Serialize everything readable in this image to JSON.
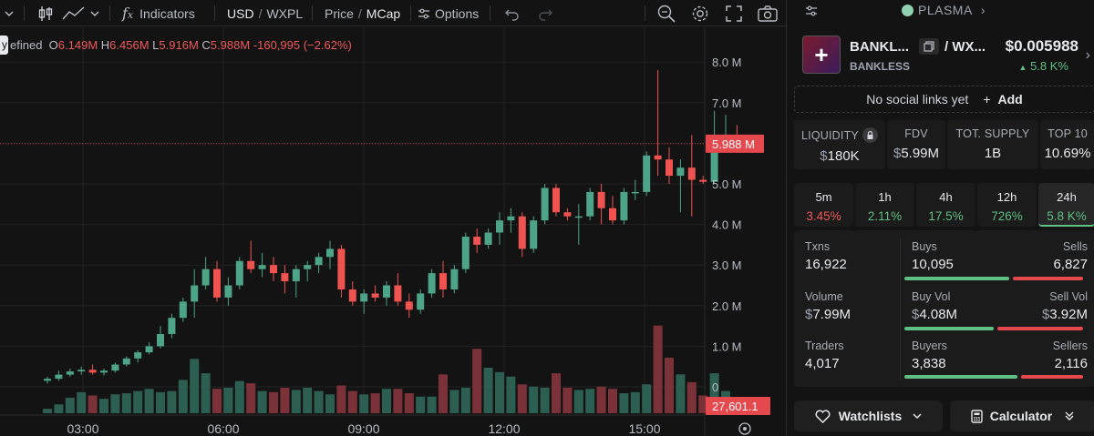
{
  "toolbar": {
    "indicators_label": "Indicators",
    "currency_usd": "USD",
    "currency_sep": "/",
    "currency_pair": "WXPL",
    "price_label": "Price",
    "price_sep": "/",
    "mcap_label": "MCap",
    "options_label": "Options"
  },
  "ohlc": {
    "prefix": "efined",
    "o_key": "O",
    "o_val": "6.149M",
    "h_key": "H",
    "h_val": "6.456M",
    "l_key": "L",
    "l_val": "5.916M",
    "c_key": "C",
    "c_val": "5.988M",
    "change": "-160,995 (−2.62%)",
    "left_tag": "y"
  },
  "price_axis": {
    "labels": [
      "8.0 M",
      "7.0 M",
      "6.0 M",
      "5.0 M",
      "4.0 M",
      "3.0 M",
      "2.0 M",
      "1.0 M",
      "0"
    ],
    "current_price": "5.988 M",
    "current_volume": "27,601.1"
  },
  "time_axis": {
    "labels": [
      "03:00",
      "06:00",
      "09:00",
      "12:00",
      "15:00"
    ]
  },
  "colors": {
    "up": "#4ea488",
    "down": "#ef5350",
    "vol_up": "#2d5e52",
    "vol_down": "#7a3238",
    "current_tag": "#e5484d"
  },
  "chart_data": {
    "type": "candlestick",
    "ylim": [
      0,
      8.5
    ],
    "y_unit": "M",
    "x_ticks": [
      "03:00",
      "06:00",
      "09:00",
      "12:00",
      "15:00"
    ],
    "candles": [
      {
        "o": 0.15,
        "h": 0.25,
        "l": 0.08,
        "c": 0.2,
        "v": 0.4
      },
      {
        "o": 0.2,
        "h": 0.4,
        "l": 0.15,
        "c": 0.3,
        "v": 0.8
      },
      {
        "o": 0.3,
        "h": 0.45,
        "l": 0.25,
        "c": 0.38,
        "v": 1.4
      },
      {
        "o": 0.38,
        "h": 0.5,
        "l": 0.3,
        "c": 0.42,
        "v": 1.9
      },
      {
        "o": 0.42,
        "h": 0.55,
        "l": 0.3,
        "c": 0.35,
        "v": 1.6
      },
      {
        "o": 0.35,
        "h": 0.45,
        "l": 0.28,
        "c": 0.4,
        "v": 1.3
      },
      {
        "o": 0.4,
        "h": 0.6,
        "l": 0.35,
        "c": 0.55,
        "v": 1.7
      },
      {
        "o": 0.55,
        "h": 0.75,
        "l": 0.5,
        "c": 0.7,
        "v": 1.8
      },
      {
        "o": 0.7,
        "h": 0.9,
        "l": 0.6,
        "c": 0.85,
        "v": 2.0
      },
      {
        "o": 0.85,
        "h": 1.1,
        "l": 0.8,
        "c": 1.0,
        "v": 2.2
      },
      {
        "o": 1.0,
        "h": 1.5,
        "l": 0.95,
        "c": 1.3,
        "v": 1.9
      },
      {
        "o": 1.3,
        "h": 1.8,
        "l": 1.2,
        "c": 1.7,
        "v": 2.0
      },
      {
        "o": 1.7,
        "h": 2.2,
        "l": 1.6,
        "c": 2.1,
        "v": 3.0
      },
      {
        "o": 2.1,
        "h": 2.9,
        "l": 1.7,
        "c": 2.5,
        "v": 4.9
      },
      {
        "o": 2.5,
        "h": 3.2,
        "l": 2.4,
        "c": 2.9,
        "v": 3.6
      },
      {
        "o": 2.9,
        "h": 3.1,
        "l": 2.1,
        "c": 2.2,
        "v": 2.2
      },
      {
        "o": 2.2,
        "h": 2.7,
        "l": 2.0,
        "c": 2.5,
        "v": 2.3
      },
      {
        "o": 2.5,
        "h": 3.2,
        "l": 2.4,
        "c": 3.1,
        "v": 2.9
      },
      {
        "o": 3.1,
        "h": 3.6,
        "l": 2.8,
        "c": 2.9,
        "v": 2.7
      },
      {
        "o": 2.9,
        "h": 3.3,
        "l": 2.7,
        "c": 3.0,
        "v": 2.0
      },
      {
        "o": 3.0,
        "h": 3.2,
        "l": 2.6,
        "c": 2.8,
        "v": 1.9
      },
      {
        "o": 2.8,
        "h": 3.0,
        "l": 2.3,
        "c": 2.6,
        "v": 2.3
      },
      {
        "o": 2.6,
        "h": 3.0,
        "l": 2.2,
        "c": 2.9,
        "v": 2.1
      },
      {
        "o": 2.9,
        "h": 3.1,
        "l": 2.6,
        "c": 3.0,
        "v": 2.3
      },
      {
        "o": 3.0,
        "h": 3.3,
        "l": 2.8,
        "c": 3.2,
        "v": 2.0
      },
      {
        "o": 3.2,
        "h": 3.6,
        "l": 2.9,
        "c": 3.4,
        "v": 1.7
      },
      {
        "o": 3.4,
        "h": 3.5,
        "l": 2.2,
        "c": 2.4,
        "v": 2.5
      },
      {
        "o": 2.4,
        "h": 2.6,
        "l": 2.0,
        "c": 2.1,
        "v": 2.0
      },
      {
        "o": 2.1,
        "h": 2.4,
        "l": 1.8,
        "c": 2.3,
        "v": 1.7
      },
      {
        "o": 2.3,
        "h": 2.5,
        "l": 2.1,
        "c": 2.2,
        "v": 1.8
      },
      {
        "o": 2.2,
        "h": 2.6,
        "l": 2.0,
        "c": 2.5,
        "v": 2.2
      },
      {
        "o": 2.5,
        "h": 2.8,
        "l": 2.0,
        "c": 2.1,
        "v": 2.2
      },
      {
        "o": 2.1,
        "h": 2.3,
        "l": 1.7,
        "c": 1.9,
        "v": 1.8
      },
      {
        "o": 1.9,
        "h": 2.4,
        "l": 1.8,
        "c": 2.3,
        "v": 1.5
      },
      {
        "o": 2.3,
        "h": 2.9,
        "l": 2.2,
        "c": 2.8,
        "v": 1.5
      },
      {
        "o": 2.8,
        "h": 3.1,
        "l": 2.2,
        "c": 2.4,
        "v": 3.5
      },
      {
        "o": 2.4,
        "h": 3.0,
        "l": 2.3,
        "c": 2.9,
        "v": 2.1
      },
      {
        "o": 2.9,
        "h": 3.8,
        "l": 2.8,
        "c": 3.7,
        "v": 2.3
      },
      {
        "o": 3.7,
        "h": 3.9,
        "l": 3.3,
        "c": 3.5,
        "v": 5.8
      },
      {
        "o": 3.5,
        "h": 3.9,
        "l": 3.4,
        "c": 3.8,
        "v": 4.1
      },
      {
        "o": 3.8,
        "h": 4.3,
        "l": 3.5,
        "c": 4.1,
        "v": 3.7
      },
      {
        "o": 4.1,
        "h": 4.4,
        "l": 3.8,
        "c": 4.2,
        "v": 3.3
      },
      {
        "o": 4.2,
        "h": 4.3,
        "l": 3.2,
        "c": 3.4,
        "v": 2.6
      },
      {
        "o": 3.4,
        "h": 4.2,
        "l": 3.3,
        "c": 4.1,
        "v": 2.4
      },
      {
        "o": 4.1,
        "h": 5.0,
        "l": 4.0,
        "c": 4.9,
        "v": 2.3
      },
      {
        "o": 4.9,
        "h": 5.0,
        "l": 4.2,
        "c": 4.3,
        "v": 3.6
      },
      {
        "o": 4.3,
        "h": 4.4,
        "l": 4.1,
        "c": 4.2,
        "v": 2.3
      },
      {
        "o": 4.2,
        "h": 4.5,
        "l": 3.5,
        "c": 4.2,
        "v": 2.1
      },
      {
        "o": 4.2,
        "h": 4.9,
        "l": 4.1,
        "c": 4.8,
        "v": 2.2
      },
      {
        "o": 4.8,
        "h": 5.0,
        "l": 4.0,
        "c": 4.4,
        "v": 2.4
      },
      {
        "o": 4.4,
        "h": 4.7,
        "l": 4.0,
        "c": 4.1,
        "v": 2.2
      },
      {
        "o": 4.1,
        "h": 4.9,
        "l": 4.0,
        "c": 4.8,
        "v": 1.8
      },
      {
        "o": 4.8,
        "h": 5.1,
        "l": 4.6,
        "c": 4.8,
        "v": 1.9
      },
      {
        "o": 4.8,
        "h": 5.8,
        "l": 4.7,
        "c": 5.7,
        "v": 2.6
      },
      {
        "o": 5.7,
        "h": 7.8,
        "l": 5.2,
        "c": 5.6,
        "v": 7.9
      },
      {
        "o": 5.6,
        "h": 5.9,
        "l": 5.0,
        "c": 5.2,
        "v": 5.0
      },
      {
        "o": 5.2,
        "h": 5.6,
        "l": 4.3,
        "c": 5.4,
        "v": 3.5
      },
      {
        "o": 5.4,
        "h": 6.2,
        "l": 4.2,
        "c": 5.1,
        "v": 2.8
      },
      {
        "o": 5.1,
        "h": 5.2,
        "l": 5.0,
        "c": 5.05,
        "v": 1.6
      },
      {
        "o": 5.05,
        "h": 6.8,
        "l": 5.0,
        "c": 5.9,
        "v": 3.6
      },
      {
        "o": 5.9,
        "h": 6.7,
        "l": 5.8,
        "c": 6.15,
        "v": 2.0
      },
      {
        "o": 6.15,
        "h": 6.45,
        "l": 5.9,
        "c": 5.99,
        "v": 0.8
      }
    ]
  },
  "sidebar": {
    "network": "PLASMA",
    "token_symbol": "BANKL...",
    "pair_sep": "/ WX...",
    "token_name": "BANKLESS",
    "price": "$0.005988",
    "change_24h": "5.8 K%",
    "social_text": "No social links yet",
    "add_label": "Add",
    "stats": [
      {
        "label": "LIQUIDITY",
        "prefix": "$",
        "value": "180K"
      },
      {
        "label": "FDV",
        "prefix": "$",
        "value": "5.99M"
      },
      {
        "label": "TOT. SUPPLY",
        "prefix": "",
        "value": "1B"
      },
      {
        "label": "TOP 10",
        "prefix": "",
        "value": "10.69%"
      }
    ],
    "timeframes": [
      {
        "label": "5m",
        "change": "3.45%",
        "dir": "down"
      },
      {
        "label": "1h",
        "change": "2.11%",
        "dir": "up"
      },
      {
        "label": "4h",
        "change": "17.5%",
        "dir": "up"
      },
      {
        "label": "12h",
        "change": "726%",
        "dir": "up"
      },
      {
        "label": "24h",
        "change": "5.8 K%",
        "dir": "up"
      }
    ],
    "txns_label": "Txns",
    "txns_value": "16,922",
    "buys_label": "Buys",
    "buys_value": "10,095",
    "sells_label": "Sells",
    "sells_value": "6,827",
    "volume_label": "Volume",
    "volume_prefix": "$",
    "volume_value": "7.99M",
    "buyvol_label": "Buy Vol",
    "buyvol_prefix": "$",
    "buyvol_value": "4.08M",
    "sellvol_label": "Sell Vol",
    "sellvol_prefix": "$",
    "sellvol_value": "3.92M",
    "traders_label": "Traders",
    "traders_value": "4,017",
    "buyers_label": "Buyers",
    "buyers_value": "3,838",
    "sellers_label": "Sellers",
    "sellers_value": "2,116",
    "buy_ratios": [
      0.597,
      0.51,
      0.645
    ],
    "watchlists_label": "Watchlists",
    "calculator_label": "Calculator"
  }
}
